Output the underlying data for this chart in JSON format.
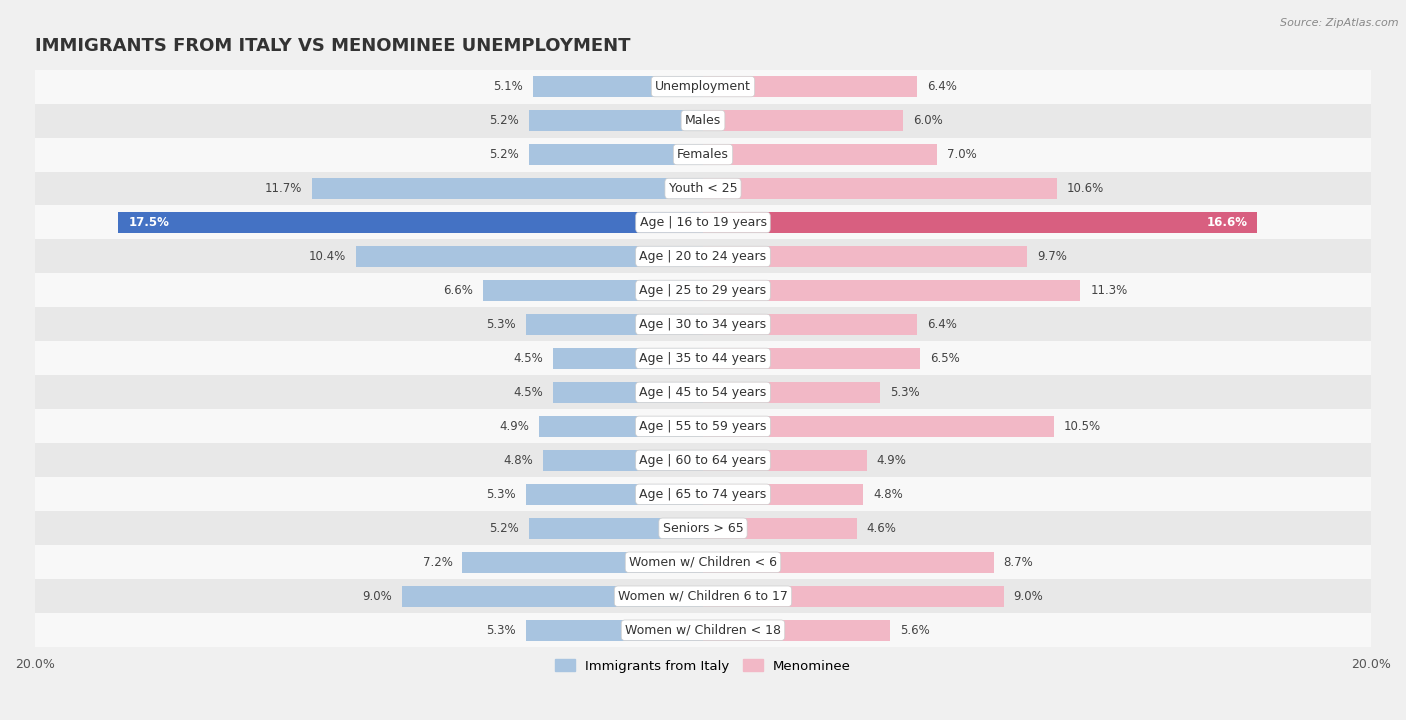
{
  "title": "IMMIGRANTS FROM ITALY VS MENOMINEE UNEMPLOYMENT",
  "source": "Source: ZipAtlas.com",
  "categories": [
    "Unemployment",
    "Males",
    "Females",
    "Youth < 25",
    "Age | 16 to 19 years",
    "Age | 20 to 24 years",
    "Age | 25 to 29 years",
    "Age | 30 to 34 years",
    "Age | 35 to 44 years",
    "Age | 45 to 54 years",
    "Age | 55 to 59 years",
    "Age | 60 to 64 years",
    "Age | 65 to 74 years",
    "Seniors > 65",
    "Women w/ Children < 6",
    "Women w/ Children 6 to 17",
    "Women w/ Children < 18"
  ],
  "italy_values": [
    5.1,
    5.2,
    5.2,
    11.7,
    17.5,
    10.4,
    6.6,
    5.3,
    4.5,
    4.5,
    4.9,
    4.8,
    5.3,
    5.2,
    7.2,
    9.0,
    5.3
  ],
  "menominee_values": [
    6.4,
    6.0,
    7.0,
    10.6,
    16.6,
    9.7,
    11.3,
    6.4,
    6.5,
    5.3,
    10.5,
    4.9,
    4.8,
    4.6,
    8.7,
    9.0,
    5.6
  ],
  "italy_color": "#a8c4e0",
  "menominee_color": "#f2b8c6",
  "highlight_italy_color": "#4472c4",
  "highlight_menominee_color": "#d85f80",
  "background_color": "#f0f0f0",
  "row_bg_even": "#f8f8f8",
  "row_bg_odd": "#e8e8e8",
  "xlim": 20.0,
  "legend_italy": "Immigrants from Italy",
  "legend_menominee": "Menominee",
  "title_fontsize": 13,
  "label_fontsize": 9,
  "value_fontsize": 8.5,
  "highlight_row": 4
}
